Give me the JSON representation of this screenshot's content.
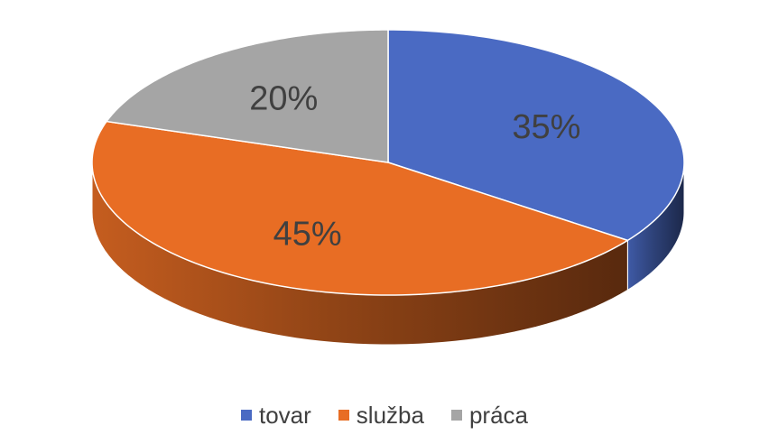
{
  "chart_data": {
    "type": "pie",
    "style": "3d",
    "title": "",
    "categories": [
      "tovar",
      "služba",
      "práca"
    ],
    "values": [
      35,
      45,
      20
    ],
    "data_labels": [
      "35%",
      "45%",
      "20%"
    ],
    "colors": [
      "#4A6AC3",
      "#E86D24",
      "#A5A5A5"
    ],
    "legend_position": "bottom"
  }
}
